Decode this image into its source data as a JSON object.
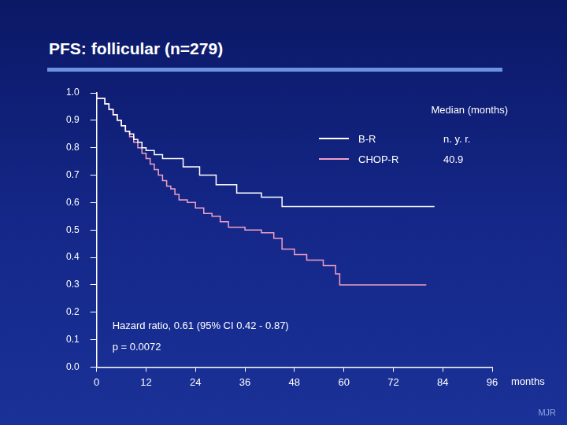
{
  "chart_data": {
    "type": "line",
    "title": "PFS: follicular (n=279)",
    "x_label": "months",
    "xlim": [
      0,
      96
    ],
    "xticks": [
      0,
      12,
      24,
      36,
      48,
      60,
      72,
      84,
      96
    ],
    "ylim": [
      0,
      1
    ],
    "yticks": [
      {
        "value": 0,
        "label": "0.0"
      },
      0.1,
      0.2,
      0.3,
      0.4,
      0.5,
      0.6,
      0.7,
      0.8,
      0.9,
      {
        "value": 1,
        "label": "1.0"
      }
    ],
    "grid": false,
    "legend": "top right",
    "legend_title": "Median (months)",
    "line_style": "step",
    "series": [
      {
        "name": "B-R",
        "color": "#ffffff",
        "median": "n. y. r.",
        "x": [
          0,
          2,
          3,
          4,
          5,
          6,
          7,
          8,
          9,
          10,
          11,
          12,
          14,
          16,
          21,
          25,
          29,
          34,
          40,
          45,
          48,
          82
        ],
        "values": [
          1,
          0.98,
          0.96,
          0.94,
          0.92,
          0.9,
          0.88,
          0.86,
          0.85,
          0.83,
          0.82,
          0.8,
          0.79,
          0.775,
          0.76,
          0.73,
          0.7,
          0.665,
          0.635,
          0.62,
          0.585,
          0.585
        ]
      },
      {
        "name": "CHOP-R",
        "color": "#f0a0c4",
        "median": 40.9,
        "x": [
          0,
          2,
          3,
          4,
          5,
          6,
          7,
          8,
          9,
          10,
          11,
          12,
          13,
          14,
          15,
          16,
          17,
          18,
          19,
          20,
          22,
          24,
          26,
          28,
          30,
          32,
          36,
          40,
          43,
          45,
          48,
          51,
          55,
          58,
          59,
          68,
          80
        ],
        "values": [
          1,
          0.98,
          0.96,
          0.94,
          0.92,
          0.9,
          0.88,
          0.86,
          0.84,
          0.82,
          0.8,
          0.78,
          0.76,
          0.74,
          0.72,
          0.7,
          0.68,
          0.66,
          0.65,
          0.63,
          0.61,
          0.6,
          0.58,
          0.56,
          0.55,
          0.53,
          0.51,
          0.5,
          0.49,
          0.47,
          0.43,
          0.41,
          0.39,
          0.37,
          0.34,
          0.3,
          0.3
        ]
      }
    ],
    "annotations": [
      "Hazard ratio, 0.61 (95% CI 0.42 - 0.87)",
      "p = 0.0072"
    ],
    "footer": "MJR"
  }
}
